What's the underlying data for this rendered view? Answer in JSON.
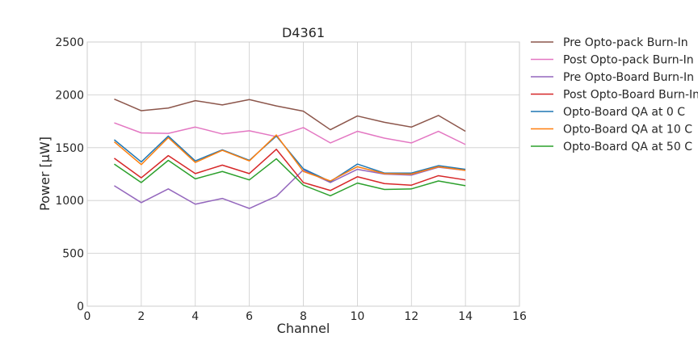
{
  "chart_data": {
    "type": "line",
    "title": "D4361",
    "xlabel": "Channel",
    "ylabel": "Power [μW]",
    "xlim": [
      0,
      16
    ],
    "ylim": [
      0,
      2500
    ],
    "xticks": [
      "0",
      "2",
      "4",
      "6",
      "8",
      "10",
      "12",
      "14",
      "16"
    ],
    "yticks": [
      "0",
      "500",
      "1000",
      "1500",
      "2000",
      "2500"
    ],
    "grid": true,
    "legend_position": "outside-right",
    "x": [
      1,
      2,
      3,
      4,
      5,
      6,
      7,
      8,
      9,
      10,
      11,
      12,
      13,
      14
    ],
    "series": [
      {
        "name": "Pre Opto-pack Burn-In",
        "color": "#8c564b",
        "values": [
          1960,
          1850,
          1875,
          1945,
          1905,
          1955,
          1895,
          1845,
          1670,
          1800,
          1740,
          1695,
          1805,
          1655
        ]
      },
      {
        "name": "Post Opto-pack Burn-In",
        "color": "#e377c2",
        "values": [
          1735,
          1640,
          1635,
          1695,
          1630,
          1660,
          1605,
          1690,
          1545,
          1655,
          1590,
          1545,
          1655,
          1530
        ]
      },
      {
        "name": "Pre Opto-Board Burn-In",
        "color": "#9467bd",
        "values": [
          1140,
          980,
          1110,
          965,
          1020,
          925,
          1040,
          1290,
          1170,
          1295,
          1250,
          1240,
          1315,
          1285
        ]
      },
      {
        "name": "Post Opto-Board Burn-In",
        "color": "#d62728",
        "values": [
          1400,
          1215,
          1425,
          1255,
          1335,
          1255,
          1485,
          1170,
          1095,
          1225,
          1160,
          1145,
          1235,
          1195
        ]
      },
      {
        "name": "Opto-Board QA at 0 C",
        "color": "#1f77b4",
        "values": [
          1575,
          1365,
          1610,
          1375,
          1480,
          1380,
          1610,
          1300,
          1180,
          1345,
          1260,
          1260,
          1330,
          1295
        ]
      },
      {
        "name": "Opto-Board QA at 10 C",
        "color": "#ff7f0e",
        "values": [
          1555,
          1340,
          1595,
          1360,
          1475,
          1375,
          1620,
          1275,
          1185,
          1320,
          1255,
          1250,
          1320,
          1285
        ]
      },
      {
        "name": "Opto-Board QA at 50 C",
        "color": "#2ca02c",
        "values": [
          1345,
          1170,
          1380,
          1205,
          1275,
          1195,
          1395,
          1145,
          1045,
          1165,
          1105,
          1110,
          1185,
          1140
        ]
      }
    ]
  }
}
